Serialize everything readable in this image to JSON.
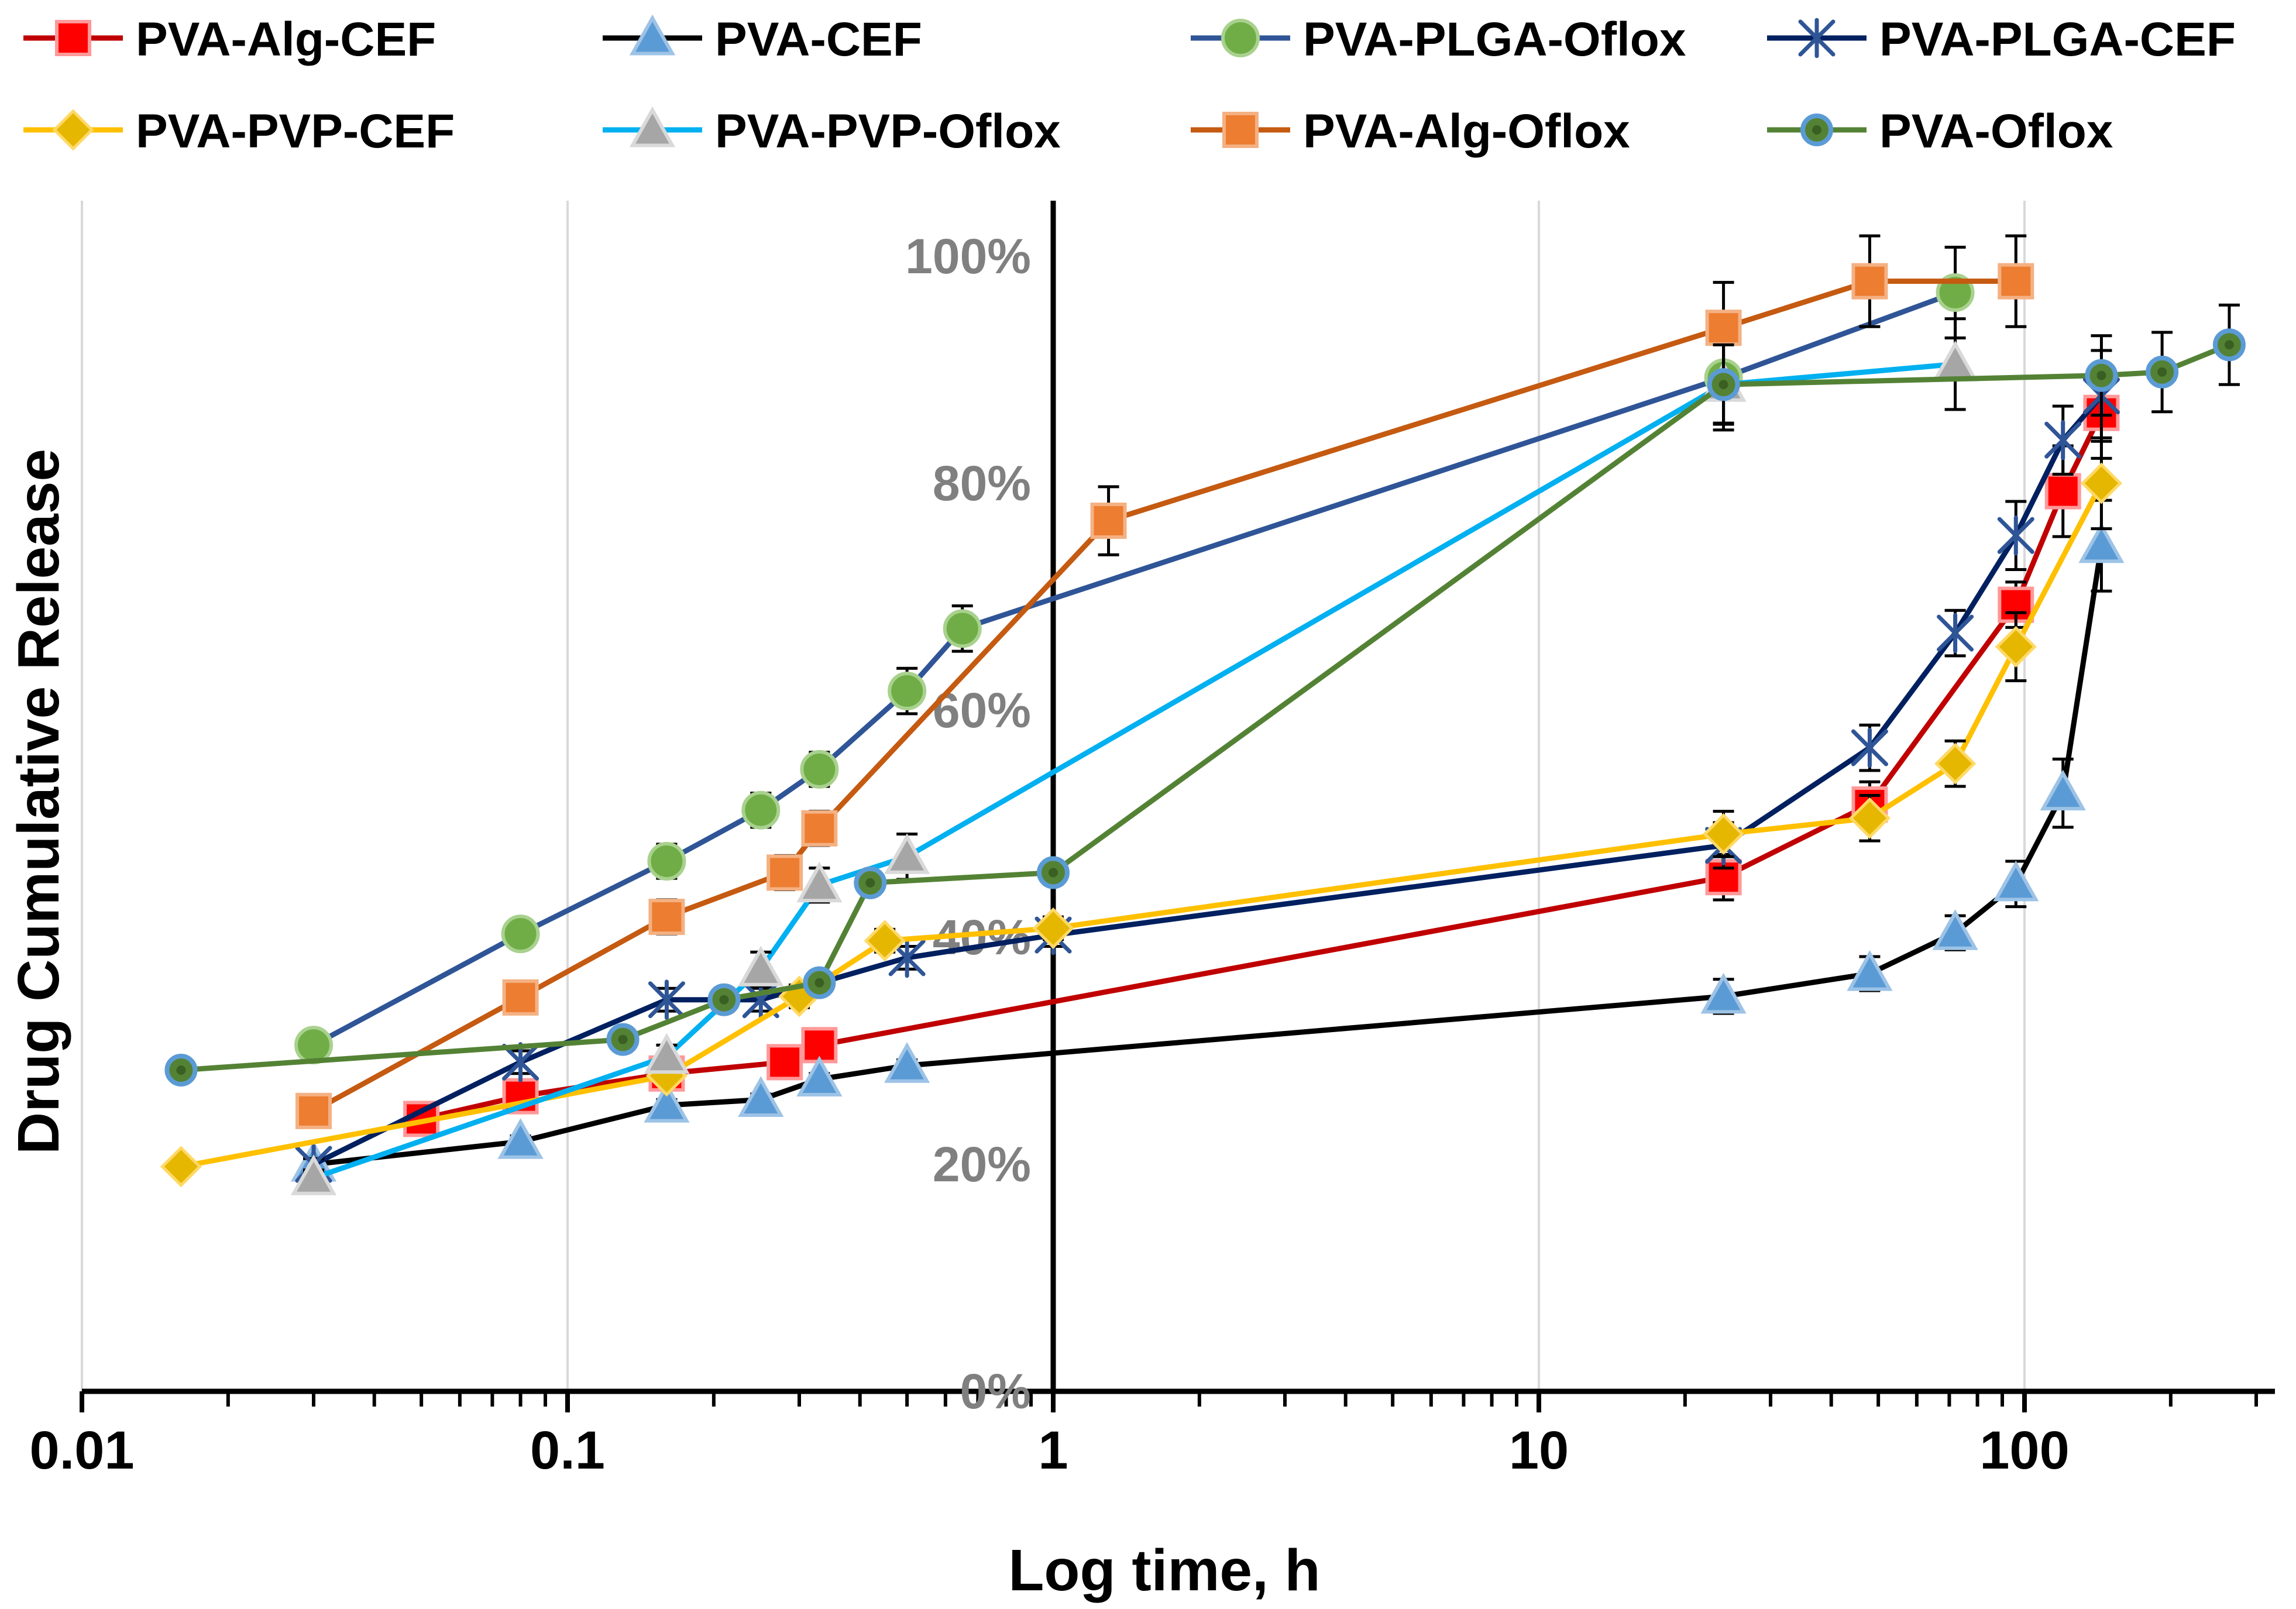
{
  "chart_data": {
    "type": "line",
    "title": "",
    "xlabel": "Log time, h",
    "ylabel": "Drug Cumulative Release",
    "x_scale": "log",
    "xlim": [
      0.01,
      300
    ],
    "ylim": [
      0,
      1
    ],
    "x_ticks": [
      {
        "value": 0.01,
        "label": "0.01"
      },
      {
        "value": 0.1,
        "label": "0.1"
      },
      {
        "value": 1,
        "label": "1"
      },
      {
        "value": 10,
        "label": "10"
      },
      {
        "value": 100,
        "label": "100"
      }
    ],
    "y_ticks": [
      {
        "value": 0,
        "label": "0%"
      },
      {
        "value": 0.2,
        "label": "20%"
      },
      {
        "value": 0.4,
        "label": "40%"
      },
      {
        "value": 0.6,
        "label": "60%"
      },
      {
        "value": 0.8,
        "label": "80%"
      },
      {
        "value": 1.0,
        "label": "100%"
      }
    ],
    "grid": "vertical",
    "legend_position": "top",
    "series": [
      {
        "name": "PVA-Alg-CEF",
        "line_color": "#C00000",
        "marker": "square",
        "marker_color": "#FF0000",
        "marker_edge": "#FF9999",
        "points": [
          [
            0.05,
            0.24
          ],
          [
            0.08,
            0.26
          ],
          [
            0.16,
            0.28
          ],
          [
            0.28,
            0.29
          ],
          [
            0.33,
            0.305
          ],
          [
            24,
            0.453
          ],
          [
            48,
            0.517
          ],
          [
            96,
            0.693
          ],
          [
            120,
            0.793
          ],
          [
            144,
            0.862
          ]
        ],
        "errors": [
          0.005,
          0.01,
          0.01,
          0.01,
          0.01,
          0.02,
          0.02,
          0.02,
          0.04,
          0.04
        ]
      },
      {
        "name": "PVA-CEF",
        "line_color": "#000000",
        "marker": "triangle",
        "marker_color": "#5B9BD5",
        "marker_edge": "#9DC3E6",
        "points": [
          [
            0.03,
            0.2
          ],
          [
            0.08,
            0.22
          ],
          [
            0.16,
            0.252
          ],
          [
            0.25,
            0.257
          ],
          [
            0.33,
            0.275
          ],
          [
            0.5,
            0.287
          ],
          [
            24,
            0.348
          ],
          [
            48,
            0.368
          ],
          [
            72,
            0.404
          ],
          [
            96,
            0.447
          ],
          [
            120,
            0.527
          ],
          [
            144,
            0.745
          ]
        ],
        "errors": [
          0.005,
          0.005,
          0.005,
          0.005,
          0.005,
          0.005,
          0.015,
          0.015,
          0.015,
          0.02,
          0.03,
          0.04
        ]
      },
      {
        "name": "PVA-PLGA-Oflox",
        "line_color": "#2F5597",
        "marker": "circle",
        "marker_color": "#70AD47",
        "marker_edge": "#A9D18E",
        "points": [
          [
            0.03,
            0.305
          ],
          [
            0.08,
            0.403
          ],
          [
            0.16,
            0.467
          ],
          [
            0.25,
            0.512
          ],
          [
            0.33,
            0.548
          ],
          [
            0.5,
            0.617
          ],
          [
            0.65,
            0.672
          ],
          [
            24,
            0.893
          ],
          [
            72,
            0.968
          ]
        ],
        "errors": [
          0.01,
          0.01,
          0.015,
          0.015,
          0.015,
          0.02,
          0.02,
          0.04,
          0.04
        ]
      },
      {
        "name": "PVA-PLGA-CEF",
        "line_color": "#002060",
        "marker": "star",
        "marker_color": "#2F5597",
        "marker_edge": "#2F5597",
        "points": [
          [
            0.03,
            0.2
          ],
          [
            0.08,
            0.29
          ],
          [
            0.16,
            0.345
          ],
          [
            0.25,
            0.345
          ],
          [
            0.5,
            0.382
          ],
          [
            1,
            0.402
          ],
          [
            24,
            0.481
          ],
          [
            48,
            0.567
          ],
          [
            72,
            0.668
          ],
          [
            96,
            0.754
          ],
          [
            120,
            0.838
          ],
          [
            144,
            0.877
          ]
        ],
        "errors": [
          0.005,
          0.01,
          0.01,
          0.01,
          0.01,
          0.01,
          0.02,
          0.02,
          0.02,
          0.03,
          0.03,
          0.04
        ]
      },
      {
        "name": "PVA-PVP-CEF",
        "line_color": "#FFC000",
        "marker": "diamond",
        "marker_color": "#E5B700",
        "marker_edge": "#FFD966",
        "points": [
          [
            0.016,
            0.198
          ],
          [
            0.16,
            0.278
          ],
          [
            0.3,
            0.348
          ],
          [
            0.45,
            0.397
          ],
          [
            1,
            0.408
          ],
          [
            24,
            0.491
          ],
          [
            48,
            0.505
          ],
          [
            72,
            0.553
          ],
          [
            96,
            0.656
          ],
          [
            144,
            0.8
          ]
        ],
        "errors": [
          0.005,
          0.005,
          0.01,
          0.01,
          0.01,
          0.02,
          0.02,
          0.02,
          0.03,
          0.04
        ]
      },
      {
        "name": "PVA-PVP-Oflox",
        "line_color": "#00B0F0",
        "marker": "triangle",
        "marker_color": "#A6A6A6",
        "marker_edge": "#D9D9D9",
        "points": [
          [
            0.03,
            0.188
          ],
          [
            0.16,
            0.295
          ],
          [
            0.25,
            0.372
          ],
          [
            0.33,
            0.446
          ],
          [
            0.5,
            0.471
          ],
          [
            24,
            0.887
          ],
          [
            72,
            0.905
          ]
        ],
        "errors": [
          0.005,
          0.01,
          0.015,
          0.015,
          0.02,
          0.04,
          0.04
        ]
      },
      {
        "name": "PVA-Alg-Oflox",
        "line_color": "#C55A11",
        "marker": "square",
        "marker_color": "#ED7D31",
        "marker_edge": "#F4B183",
        "points": [
          [
            0.03,
            0.247
          ],
          [
            0.08,
            0.347
          ],
          [
            0.16,
            0.418
          ],
          [
            0.28,
            0.457
          ],
          [
            0.33,
            0.496
          ],
          [
            1.3,
            0.767
          ],
          [
            24,
            0.937
          ],
          [
            48,
            0.978
          ],
          [
            96,
            0.978
          ]
        ],
        "errors": [
          0.005,
          0.01,
          0.015,
          0.015,
          0.015,
          0.03,
          0.04,
          0.04,
          0.04
        ]
      },
      {
        "name": "PVA-Oflox",
        "line_color": "#548235",
        "marker": "ringdot",
        "marker_color": "#548235",
        "marker_edge": "#5B9BD5",
        "points": [
          [
            0.016,
            0.283
          ],
          [
            0.13,
            0.31
          ],
          [
            0.21,
            0.345
          ],
          [
            0.33,
            0.36
          ],
          [
            0.42,
            0.448
          ],
          [
            1,
            0.457
          ],
          [
            24,
            0.887
          ],
          [
            144,
            0.895
          ],
          [
            192,
            0.898
          ],
          [
            264,
            0.922
          ]
        ],
        "errors": [
          0.005,
          0.005,
          0.01,
          0.01,
          0.01,
          0.01,
          0.035,
          0.035,
          0.035,
          0.035
        ]
      }
    ]
  }
}
